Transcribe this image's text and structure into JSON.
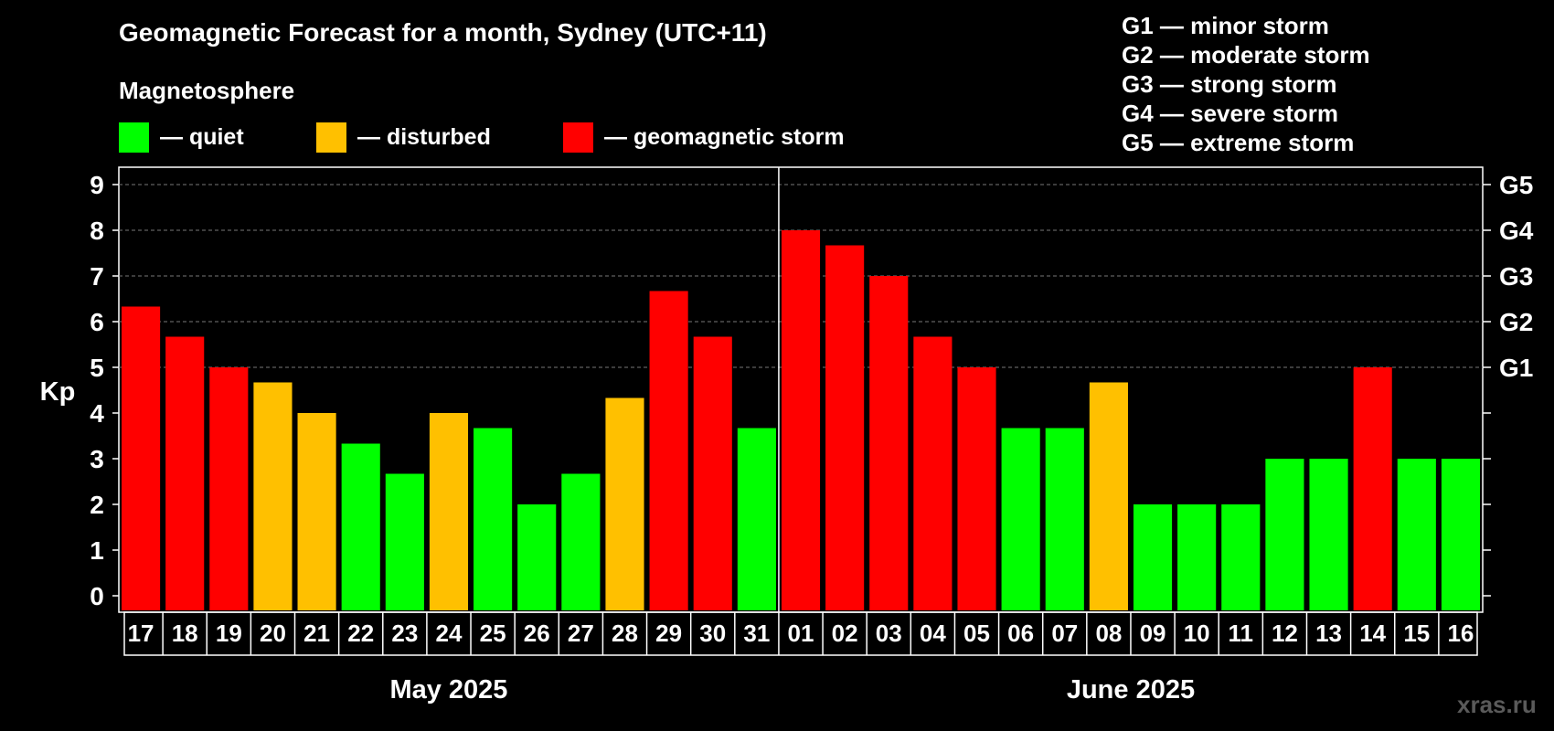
{
  "chart_data": {
    "type": "bar",
    "title": "Geomagnetic Forecast for a month, Sydney (UTC+11)",
    "subtitle": "Magnetosphere",
    "ylabel": "Kp",
    "ylim": [
      0,
      9
    ],
    "y_ticks": [
      "0",
      "1",
      "2",
      "3",
      "4",
      "5",
      "6",
      "7",
      "8",
      "9"
    ],
    "right_ticks": [
      {
        "value": 5,
        "label": "G1"
      },
      {
        "value": 6,
        "label": "G2"
      },
      {
        "value": 7,
        "label": "G3"
      },
      {
        "value": 8,
        "label": "G4"
      },
      {
        "value": 9,
        "label": "G5"
      }
    ],
    "categories": [
      "17",
      "18",
      "19",
      "20",
      "21",
      "22",
      "23",
      "24",
      "25",
      "26",
      "27",
      "28",
      "29",
      "30",
      "31",
      "01",
      "02",
      "03",
      "04",
      "05",
      "06",
      "07",
      "08",
      "09",
      "10",
      "11",
      "12",
      "13",
      "14",
      "15",
      "16"
    ],
    "values": [
      6.33,
      5.67,
      5,
      4.67,
      4,
      3.33,
      2.67,
      4,
      3.67,
      2,
      2.67,
      4.33,
      6.67,
      5.67,
      3.67,
      8,
      7.67,
      7,
      5.67,
      5,
      3.67,
      3.67,
      4.67,
      2,
      2,
      2,
      3,
      3,
      5,
      3,
      3
    ],
    "statuses": [
      "storm",
      "storm",
      "storm",
      "disturbed",
      "disturbed",
      "quiet",
      "quiet",
      "disturbed",
      "quiet",
      "quiet",
      "quiet",
      "disturbed",
      "storm",
      "storm",
      "quiet",
      "storm",
      "storm",
      "storm",
      "storm",
      "storm",
      "quiet",
      "quiet",
      "disturbed",
      "quiet",
      "quiet",
      "quiet",
      "quiet",
      "quiet",
      "storm",
      "quiet",
      "quiet"
    ],
    "months": [
      {
        "label": "May 2025",
        "start": 0,
        "end": 14
      },
      {
        "label": "June 2025",
        "start": 15,
        "end": 30
      }
    ],
    "legend": [
      {
        "key": "quiet",
        "label": "— quiet",
        "color": "#00ff00"
      },
      {
        "key": "disturbed",
        "label": "— disturbed",
        "color": "#ffc000"
      },
      {
        "key": "storm",
        "label": "— geomagnetic storm",
        "color": "#ff0000"
      }
    ],
    "g_legend": [
      "G1 — minor storm",
      "G2 — moderate storm",
      "G3 — strong storm",
      "G4 — severe storm",
      "G5 — extreme storm"
    ]
  },
  "watermark": "xras.ru"
}
